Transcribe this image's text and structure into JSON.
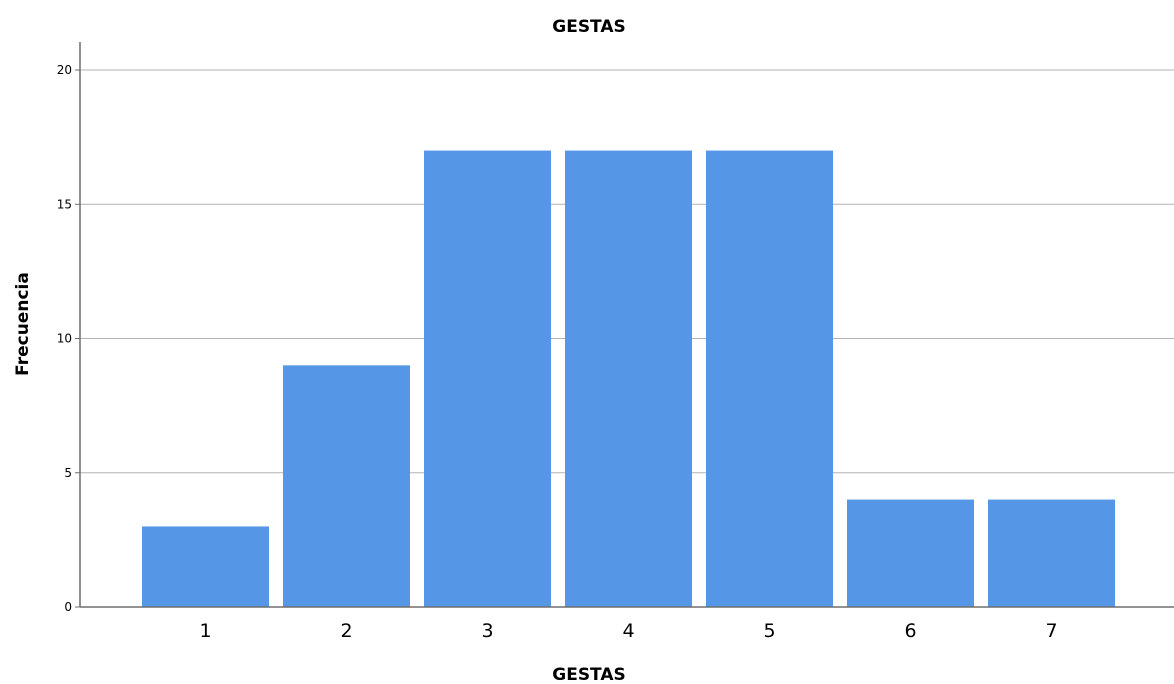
{
  "chart_data": {
    "type": "bar",
    "title": "GESTAS",
    "xlabel": "GESTAS",
    "ylabel": "Frecuencia",
    "categories": [
      "1",
      "2",
      "3",
      "4",
      "5",
      "6",
      "7"
    ],
    "values": [
      3,
      9,
      17,
      17,
      17,
      4,
      4
    ],
    "ylim": [
      0,
      21
    ],
    "yticks": [
      "0",
      "5",
      "10",
      "15",
      "20"
    ],
    "grid": true,
    "bar_color": "#5596e6"
  }
}
